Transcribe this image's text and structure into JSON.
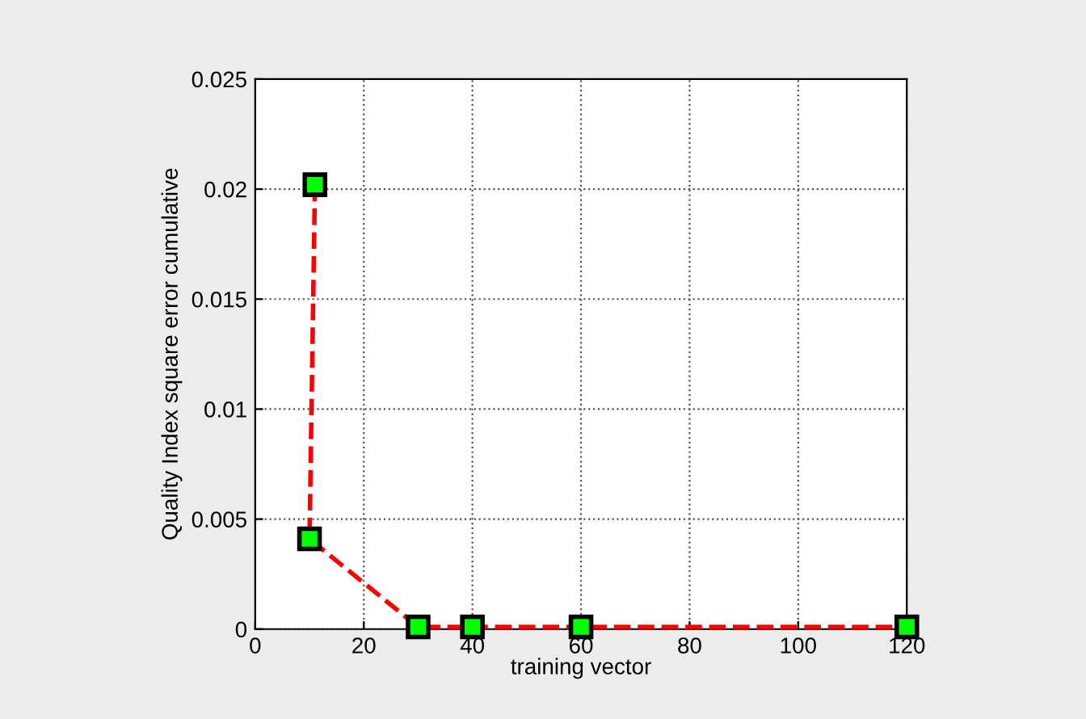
{
  "chart_data": {
    "type": "line",
    "xlabel": "training vector",
    "ylabel": "Quality Index square error cumulative",
    "series": [
      {
        "x": [
          11,
          10,
          30,
          40,
          60,
          120
        ],
        "values": [
          0.0202,
          0.0041,
          0.0001,
          0.0001,
          0.0001,
          0.0001
        ],
        "color": "#ff0000"
      }
    ],
    "marker": "square",
    "line_style": "dashed",
    "grid": true,
    "xlim": [
      0,
      120
    ],
    "xticks": [
      0,
      20,
      40,
      60,
      80,
      100,
      120
    ],
    "ylim": [
      0,
      0.025
    ],
    "yticks": [
      0,
      0.005,
      0.01,
      0.015,
      0.02,
      0.025
    ]
  }
}
